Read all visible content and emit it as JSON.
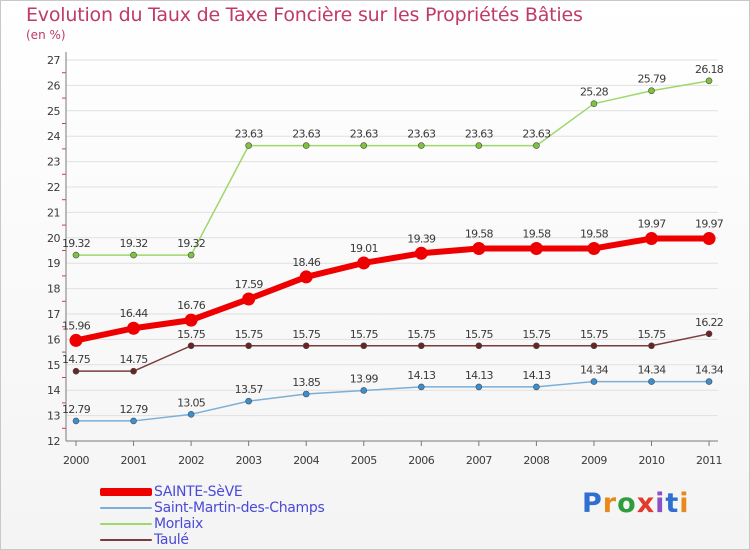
{
  "title": "Evolution du Taux de Taxe Foncière sur les Propriétés Bâties",
  "subtitle": "(en %)",
  "logo": {
    "text": "Proxiti",
    "letter_colors": [
      "#2f6fd1",
      "#e8891a",
      "#2f9d3c",
      "#e33a2b",
      "#8d4fc7",
      "#2f6fd1",
      "#e8891a"
    ]
  },
  "colors": {
    "title": "#c0396b",
    "axis": "#7a7a7a",
    "grid": "#e0e0e0",
    "tick_marks": "#d04040",
    "label": "#3a3a3a"
  },
  "chart_data": {
    "type": "line",
    "x": [
      "2000",
      "2001",
      "2002",
      "2003",
      "2004",
      "2005",
      "2006",
      "2007",
      "2008",
      "2009",
      "2010",
      "2011"
    ],
    "ylim": [
      12,
      27
    ],
    "yticks": [
      12,
      13,
      14,
      15,
      16,
      17,
      18,
      19,
      20,
      21,
      22,
      23,
      24,
      25,
      26,
      27
    ],
    "grid": "horizontal",
    "legend_position": "bottom-left",
    "series": [
      {
        "name": "SAINTE-SèVE",
        "color": "#ee0000",
        "marker_color": "#ee0000",
        "thick": true,
        "values": [
          15.96,
          16.44,
          16.76,
          17.59,
          18.46,
          19.01,
          19.39,
          19.58,
          19.58,
          19.58,
          19.97,
          19.97
        ],
        "labels": [
          "15.96",
          "16.44",
          "16.76",
          "17.59",
          "18.46",
          "19.01",
          "19.39",
          "19.58",
          "19.58",
          "19.58",
          "19.97",
          "19.97"
        ]
      },
      {
        "name": "Saint-Martin-des-Champs",
        "color": "#7bafd8",
        "marker_color": "#3a8fd0",
        "thick": false,
        "values": [
          12.79,
          12.79,
          13.05,
          13.57,
          13.85,
          13.99,
          14.13,
          14.13,
          14.13,
          14.34,
          14.34,
          14.34
        ],
        "labels": [
          "12.79",
          "12.79",
          "13.05",
          "13.57",
          "13.85",
          "13.99",
          "14.13",
          "14.13",
          "14.13",
          "14.34",
          "14.34",
          "14.34"
        ]
      },
      {
        "name": "Morlaix",
        "color": "#9ed86b",
        "marker_color": "#7cc43c",
        "thick": false,
        "values": [
          19.32,
          19.32,
          19.32,
          23.63,
          23.63,
          23.63,
          23.63,
          23.63,
          23.63,
          25.28,
          25.79,
          26.18
        ],
        "labels": [
          "19.32",
          "19.32",
          "19.32",
          "23.63",
          "23.63",
          "23.63",
          "23.63",
          "23.63",
          "23.63",
          "25.28",
          "25.79",
          "26.18"
        ]
      },
      {
        "name": "Taulé",
        "color": "#7a3c3c",
        "marker_color": "#6a2424",
        "thick": false,
        "values": [
          14.75,
          14.75,
          15.75,
          15.75,
          15.75,
          15.75,
          15.75,
          15.75,
          15.75,
          15.75,
          15.75,
          16.22
        ],
        "labels": [
          "14.75",
          "14.75",
          "15.75",
          "15.75",
          "15.75",
          "15.75",
          "15.75",
          "15.75",
          "15.75",
          "15.75",
          "15.75",
          "16.22"
        ]
      }
    ]
  }
}
